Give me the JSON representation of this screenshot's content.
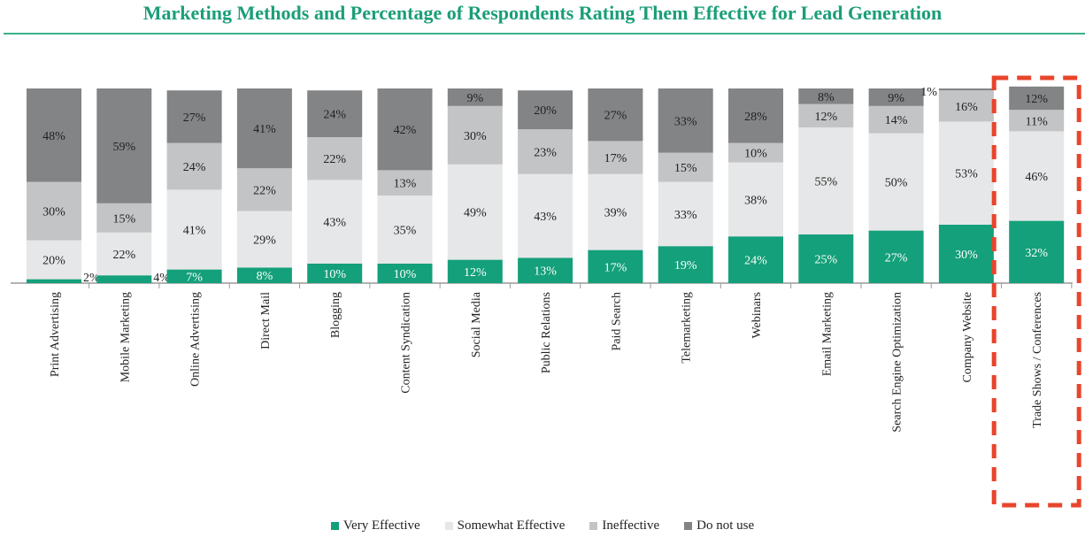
{
  "chart_data": {
    "type": "bar",
    "stacked": true,
    "percent_stacked": true,
    "title": "Marketing Methods and Percentage of Respondents Rating Them Effective for Lead Generation",
    "categories": [
      "Print Advertising",
      "Mobile Marketing",
      "Online Advertising",
      "Direct Mail",
      "Blogging",
      "Content Syndication",
      "Social Media",
      "Public Relations",
      "Paid Search",
      "Telemarketing",
      "Webinars",
      "Email Marketing",
      "Search Engine Optimization",
      "Company Website",
      "Trade Shows / Conferences"
    ],
    "series": [
      {
        "name": "Very Effective",
        "color": "#14a07a",
        "label_color": "#ffffff",
        "values": [
          2,
          4,
          7,
          8,
          10,
          10,
          12,
          13,
          17,
          19,
          24,
          25,
          27,
          30,
          32
        ],
        "labels": [
          "2%",
          "4%",
          "7%",
          "8%",
          "10%",
          "10%",
          "12%",
          "13%",
          "17%",
          "19%",
          "24%",
          "25%",
          "27%",
          "30%",
          "32%"
        ]
      },
      {
        "name": "Somewhat Effective",
        "color": "#e6e7e8",
        "label_color": "#222222",
        "values": [
          20,
          22,
          41,
          29,
          43,
          35,
          49,
          43,
          39,
          33,
          38,
          55,
          50,
          53,
          46
        ],
        "labels": [
          "20%",
          "22%",
          "41%",
          "29%",
          "43%",
          "35%",
          "49%",
          "43%",
          "39%",
          "33%",
          "38%",
          "55%",
          "50%",
          "53%",
          "46%"
        ]
      },
      {
        "name": "Ineffective",
        "color": "#c3c4c6",
        "label_color": "#222222",
        "values": [
          30,
          15,
          24,
          22,
          22,
          13,
          30,
          23,
          17,
          15,
          10,
          12,
          14,
          16,
          11
        ],
        "labels": [
          "30%",
          "15%",
          "24%",
          "22%",
          "22%",
          "13%",
          "30%",
          "23%",
          "17%",
          "15%",
          "10%",
          "12%",
          "14%",
          "16%",
          "11%"
        ]
      },
      {
        "name": "Do not use",
        "color": "#838486",
        "label_color": "#222222",
        "values": [
          48,
          59,
          27,
          41,
          24,
          42,
          9,
          20,
          27,
          33,
          28,
          8,
          9,
          1,
          12
        ],
        "labels": [
          "48%",
          "59%",
          "27%",
          "41%",
          "24%",
          "42%",
          "9%",
          "20%",
          "27%",
          "33%",
          "28%",
          "8%",
          "9%",
          "1%",
          "12%"
        ]
      }
    ],
    "ylim": [
      0,
      100
    ],
    "legend": [
      "Very Effective",
      "Somewhat Effective",
      "Ineffective",
      "Do not use"
    ],
    "legend_position": "bottom",
    "highlighted_category": "Trade Shows / Conferences",
    "highlight_color": "#e8452c"
  }
}
